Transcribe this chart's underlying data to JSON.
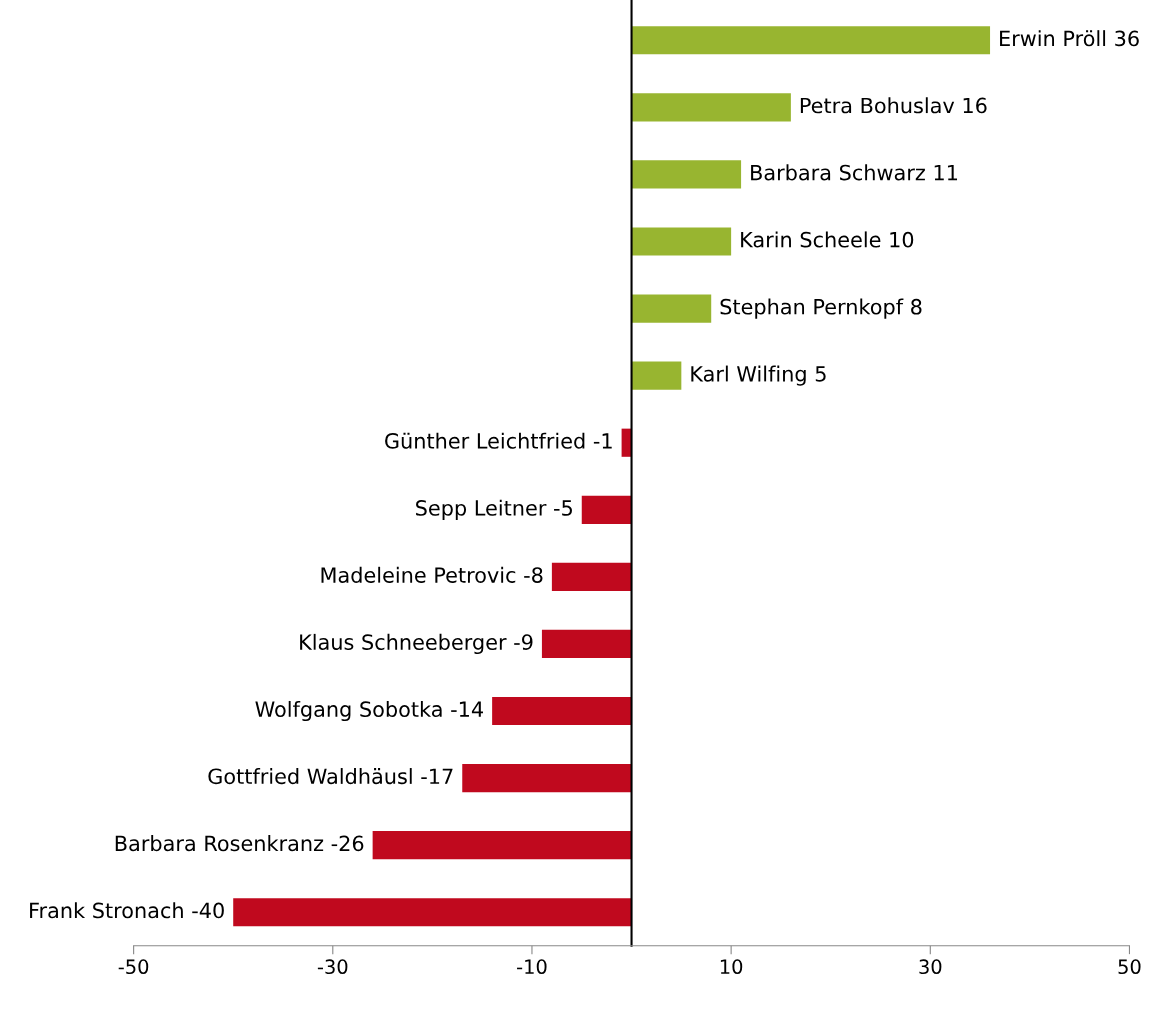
{
  "chart_data": {
    "type": "bar",
    "orientation": "horizontal",
    "categories": [
      null,
      null,
      null,
      null,
      null,
      null,
      null,
      null,
      null,
      null,
      null,
      null,
      null,
      null
    ],
    "values": [
      36,
      16,
      11,
      10,
      8,
      5,
      -1,
      -5,
      -8,
      -9,
      -14,
      -17,
      -26,
      -40
    ],
    "value_labels": [
      "Erwin Pröll 36",
      "Petra Bohuslav 16",
      "Barbara Schwarz 11",
      "Karin Scheele 10",
      "Stephan Pernkopf 8",
      "Karl Wilfing 5",
      "Günther Leichtfried -1",
      "Sepp Leitner -5",
      "Madeleine Petrovic -8",
      "Klaus Schneeberger -9",
      "Wolfgang Sobotka -14",
      "Gottfried Waldhäusl -17",
      "Barbara Rosenkranz -26",
      "Frank Stronach -40"
    ],
    "colors": [
      "#98b530",
      "#98b530",
      "#98b530",
      "#98b530",
      "#98b530",
      "#98b530",
      "#c0091e",
      "#c0091e",
      "#c0091e",
      "#c0091e",
      "#c0091e",
      "#c0091e",
      "#c0091e",
      "#c0091e"
    ],
    "xlim": [
      -50,
      50
    ],
    "xticks": [
      -50,
      -30,
      -10,
      10,
      30,
      50
    ],
    "tick_labels": "x",
    "grid": false
  }
}
